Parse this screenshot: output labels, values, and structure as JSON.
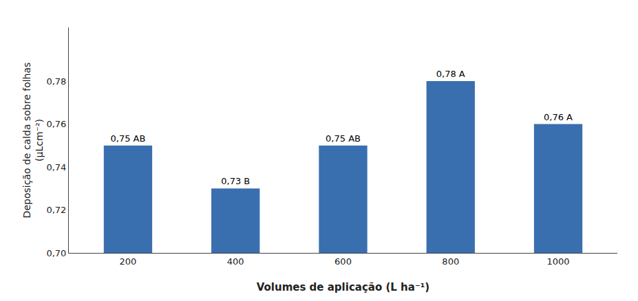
{
  "chart_data": {
    "type": "bar",
    "categories": [
      "200",
      "400",
      "600",
      "800",
      "1000"
    ],
    "values": [
      0.75,
      0.73,
      0.75,
      0.78,
      0.76
    ],
    "value_labels": [
      "0,75 AB",
      "0,73 B",
      "0,75 AB",
      "0,78 A",
      "0,76 A"
    ],
    "data_labels": true,
    "color": "#3a6faf",
    "xlabel": "Volumes de aplicação (L ha⁻¹)",
    "ylabel": "Deposição de calda sobre folhas\n(μLcm⁻²)",
    "ylim": [
      0.7,
      0.805
    ],
    "yticks": [
      {
        "value": 0.7,
        "label": "0,70"
      },
      {
        "value": 0.72,
        "label": "0,72"
      },
      {
        "value": 0.74,
        "label": "0,74"
      },
      {
        "value": 0.76,
        "label": "0,76"
      },
      {
        "value": 0.78,
        "label": "0,78"
      }
    ],
    "grid": false
  }
}
